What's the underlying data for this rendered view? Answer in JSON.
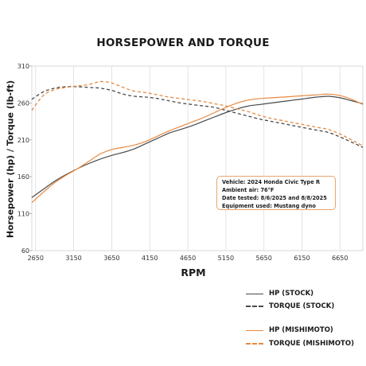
{
  "chart_data": {
    "type": "line",
    "title": "HORSEPOWER AND TORQUE",
    "xlabel": "RPM",
    "ylabel": "Horsepower (hp) / Torque (lb-ft)",
    "xlim": [
      2600,
      6950
    ],
    "ylim": [
      60,
      310
    ],
    "xticks": [
      "2650",
      "3150",
      "3650",
      "4150",
      "4650",
      "5150",
      "5650",
      "6150",
      "6650"
    ],
    "yticks": [
      "60",
      "110",
      "160",
      "210",
      "260",
      "310"
    ],
    "grid": "vertical",
    "legend_position": "bottom-right",
    "annotation": [
      "Vehicle: 2024 Honda Civic Type R",
      "Ambient air: 76°F",
      "Date tested: 8/6/2025 and 8/8/2025",
      "Equipment used: Mustang dyno"
    ],
    "series": [
      {
        "name": "HP (STOCK)",
        "color": "#4a4a4a",
        "dash": "solid",
        "x": [
          2600,
          2750,
          2900,
          3050,
          3200,
          3350,
          3500,
          3650,
          3800,
          3950,
          4100,
          4250,
          4400,
          4550,
          4700,
          4850,
          5000,
          5150,
          5300,
          5450,
          5600,
          5750,
          5900,
          6050,
          6200,
          6350,
          6500,
          6650,
          6800,
          6950
        ],
        "values": [
          132,
          143,
          154,
          163,
          171,
          178,
          184,
          189,
          193,
          198,
          205,
          212,
          219,
          224,
          229,
          235,
          241,
          247,
          252,
          256,
          258,
          260,
          262,
          264,
          266,
          268,
          269,
          267,
          263,
          259
        ]
      },
      {
        "name": "TORQUE (STOCK)",
        "color": "#4a4a4a",
        "dash": "dashed",
        "x": [
          2600,
          2750,
          2900,
          3050,
          3200,
          3350,
          3500,
          3650,
          3800,
          3950,
          4100,
          4250,
          4400,
          4550,
          4700,
          4850,
          5000,
          5150,
          5300,
          5450,
          5600,
          5750,
          5900,
          6050,
          6200,
          6350,
          6500,
          6650,
          6800,
          6950
        ],
        "values": [
          265,
          275,
          280,
          282,
          282,
          281,
          280,
          277,
          272,
          269,
          268,
          266,
          263,
          260,
          258,
          256,
          254,
          250,
          246,
          242,
          238,
          235,
          232,
          229,
          226,
          223,
          220,
          214,
          207,
          200
        ]
      },
      {
        "name": "HP (MISHIMOTO)",
        "color": "#e8893f",
        "dash": "solid",
        "x": [
          2600,
          2750,
          2900,
          3050,
          3200,
          3350,
          3500,
          3650,
          3800,
          3950,
          4100,
          4250,
          4400,
          4550,
          4700,
          4850,
          5000,
          5150,
          5300,
          5450,
          5600,
          5750,
          5900,
          6050,
          6200,
          6350,
          6500,
          6650,
          6800,
          6950
        ],
        "values": [
          125,
          139,
          152,
          162,
          171,
          181,
          191,
          197,
          200,
          203,
          208,
          215,
          222,
          228,
          234,
          240,
          247,
          254,
          260,
          264,
          266,
          267,
          268,
          269,
          270,
          271,
          272,
          270,
          265,
          258
        ]
      },
      {
        "name": "TORQUE (MISHIMOTO)",
        "color": "#e8893f",
        "dash": "dashed",
        "x": [
          2600,
          2750,
          2900,
          3050,
          3200,
          3350,
          3500,
          3650,
          3800,
          3950,
          4100,
          4250,
          4400,
          4550,
          4700,
          4850,
          5000,
          5150,
          5300,
          5450,
          5600,
          5750,
          5900,
          6050,
          6200,
          6350,
          6500,
          6650,
          6800,
          6950
        ],
        "values": [
          250,
          270,
          278,
          281,
          283,
          285,
          289,
          287,
          281,
          276,
          274,
          271,
          268,
          266,
          264,
          262,
          259,
          256,
          252,
          248,
          243,
          239,
          236,
          233,
          230,
          227,
          224,
          218,
          210,
          202
        ]
      }
    ]
  }
}
